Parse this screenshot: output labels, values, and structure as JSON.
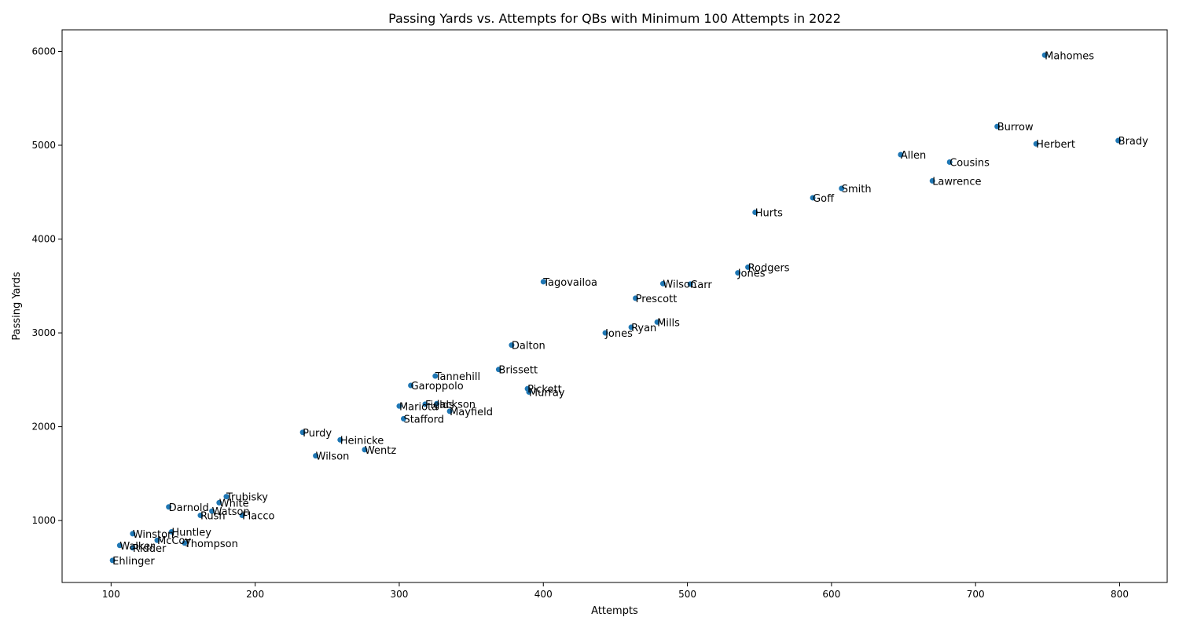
{
  "chart_data": {
    "type": "scatter",
    "title": "Passing Yards vs. Attempts for QBs with Minimum 100 Attempts in 2022",
    "xlabel": "Attempts",
    "ylabel": "Passing Yards",
    "xlim": [
      66,
      833
    ],
    "ylim": [
      340,
      6230
    ],
    "xticks": [
      100,
      200,
      300,
      400,
      500,
      600,
      700,
      800
    ],
    "yticks": [
      1000,
      2000,
      3000,
      4000,
      5000,
      6000
    ],
    "grid": false,
    "marker_color": "#1f77b4",
    "points": [
      {
        "label": "Mahomes",
        "x": 748,
        "y": 5960
      },
      {
        "label": "Burrow",
        "x": 715,
        "y": 5200
      },
      {
        "label": "Brady",
        "x": 799,
        "y": 5050
      },
      {
        "label": "Herbert",
        "x": 742,
        "y": 5015
      },
      {
        "label": "Allen",
        "x": 648,
        "y": 4900
      },
      {
        "label": "Cousins",
        "x": 682,
        "y": 4820
      },
      {
        "label": "Lawrence",
        "x": 670,
        "y": 4620
      },
      {
        "label": "Smith",
        "x": 607,
        "y": 4540
      },
      {
        "label": "Goff",
        "x": 587,
        "y": 4440
      },
      {
        "label": "Hurts",
        "x": 547,
        "y": 4285
      },
      {
        "label": "Rodgers",
        "x": 542,
        "y": 3700
      },
      {
        "label": "Jones",
        "x": 535,
        "y": 3640
      },
      {
        "label": "Wilson",
        "x": 483,
        "y": 3525
      },
      {
        "label": "Carr",
        "x": 502,
        "y": 3520
      },
      {
        "label": "Tagovailoa",
        "x": 400,
        "y": 3545
      },
      {
        "label": "Prescott",
        "x": 464,
        "y": 3370
      },
      {
        "label": "Mills",
        "x": 479,
        "y": 3115
      },
      {
        "label": "Ryan",
        "x": 461,
        "y": 3060
      },
      {
        "label": "Jones",
        "x": 443,
        "y": 3000
      },
      {
        "label": "Dalton",
        "x": 378,
        "y": 2870
      },
      {
        "label": "Brissett",
        "x": 369,
        "y": 2610
      },
      {
        "label": "Tannehill",
        "x": 325,
        "y": 2540
      },
      {
        "label": "Garoppolo",
        "x": 308,
        "y": 2440
      },
      {
        "label": "Pickett",
        "x": 389,
        "y": 2405
      },
      {
        "label": "Murray",
        "x": 390,
        "y": 2370
      },
      {
        "label": "Fields",
        "x": 318,
        "y": 2240
      },
      {
        "label": "Jackson",
        "x": 326,
        "y": 2245
      },
      {
        "label": "Mariota",
        "x": 300,
        "y": 2220
      },
      {
        "label": "Mayfield",
        "x": 335,
        "y": 2165
      },
      {
        "label": "Stafford",
        "x": 303,
        "y": 2085
      },
      {
        "label": "Purdy",
        "x": 233,
        "y": 1940
      },
      {
        "label": "Heinicke",
        "x": 259,
        "y": 1860
      },
      {
        "label": "Wentz",
        "x": 276,
        "y": 1755
      },
      {
        "label": "Wilson",
        "x": 242,
        "y": 1690
      },
      {
        "label": "Trubisky",
        "x": 180,
        "y": 1255
      },
      {
        "label": "White",
        "x": 175,
        "y": 1190
      },
      {
        "label": "Darnold",
        "x": 140,
        "y": 1145
      },
      {
        "label": "Watson",
        "x": 170,
        "y": 1100
      },
      {
        "label": "Rush",
        "x": 162,
        "y": 1055
      },
      {
        "label": "Flacco",
        "x": 191,
        "y": 1055
      },
      {
        "label": "Winston",
        "x": 115,
        "y": 860
      },
      {
        "label": "Huntley",
        "x": 142,
        "y": 880
      },
      {
        "label": "McCoy",
        "x": 132,
        "y": 790
      },
      {
        "label": "Thompson",
        "x": 151,
        "y": 760
      },
      {
        "label": "Walker",
        "x": 106,
        "y": 735
      },
      {
        "label": "Ridder",
        "x": 115,
        "y": 710
      },
      {
        "label": "Ehlinger",
        "x": 101,
        "y": 575
      }
    ]
  }
}
